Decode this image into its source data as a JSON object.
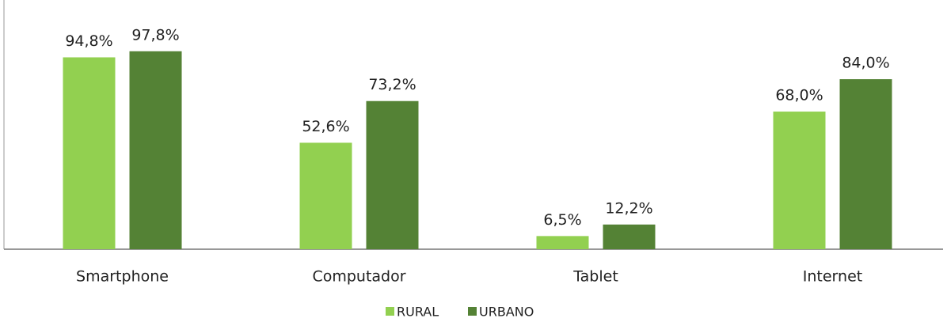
{
  "chart_data": {
    "type": "bar",
    "categories": [
      "Smartphone",
      "Computador",
      "Tablet",
      "Internet"
    ],
    "series": [
      {
        "name": "RURAL",
        "color": "#92d050",
        "values": [
          94.8,
          52.6,
          6.5,
          68.0
        ],
        "value_labels": [
          "94,8%",
          "52,6%",
          "6,5%",
          "68,0%"
        ]
      },
      {
        "name": "URBANO",
        "color": "#548235",
        "values": [
          97.8,
          73.2,
          12.2,
          84.0
        ],
        "value_labels": [
          "97,8%",
          "73,2%",
          "12,2%",
          "84,0%"
        ]
      }
    ],
    "ylim": [
      0,
      120
    ]
  }
}
